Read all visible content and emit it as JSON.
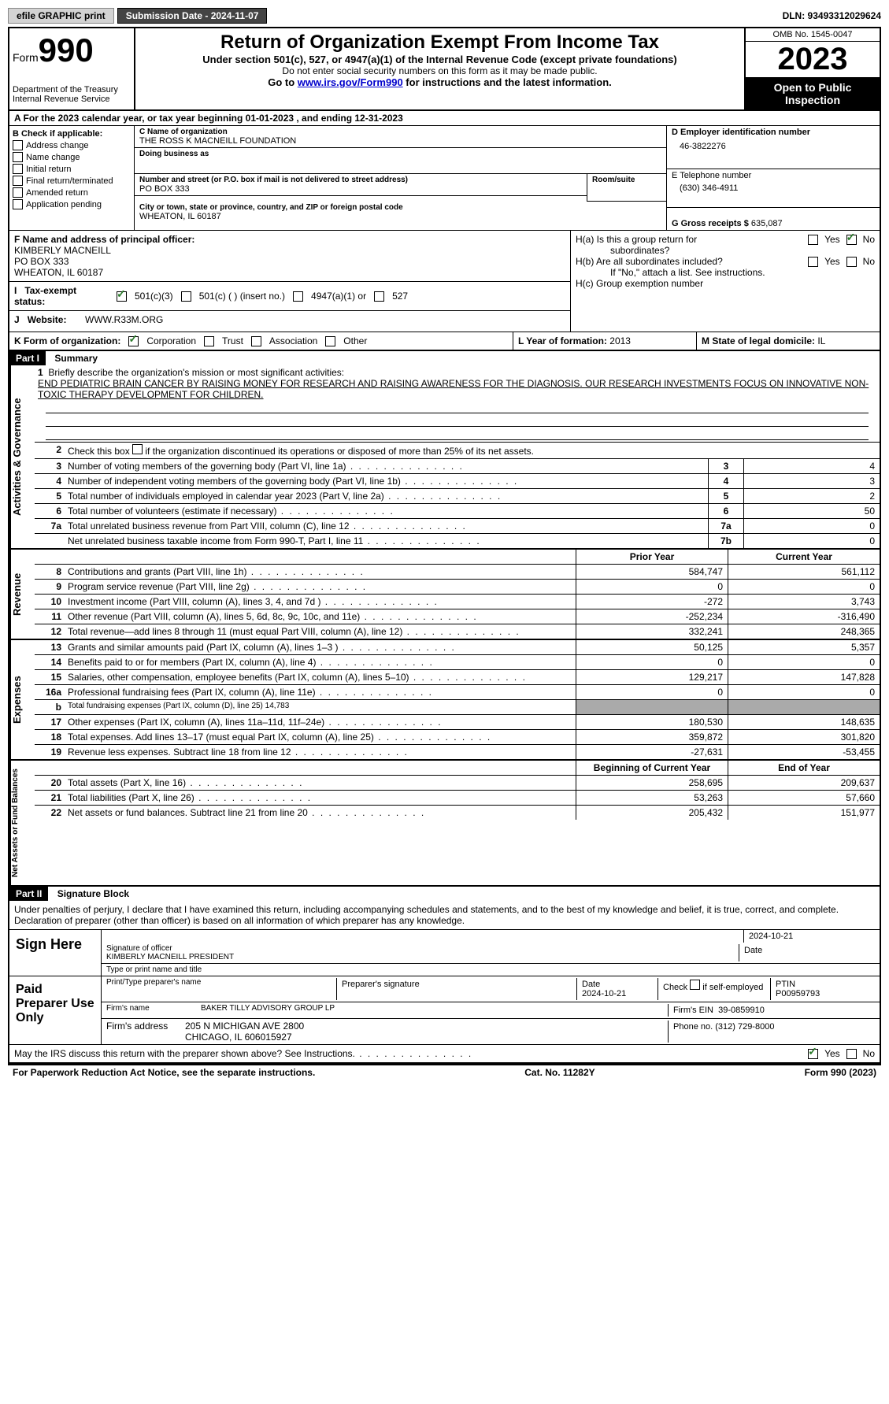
{
  "topbar": {
    "efile": "efile GRAPHIC print",
    "submission": "Submission Date - 2024-11-07",
    "dln": "DLN: 93493312029624"
  },
  "header": {
    "form_label": "Form",
    "form_number": "990",
    "dept": "Department of the Treasury",
    "irs": "Internal Revenue Service",
    "title": "Return of Organization Exempt From Income Tax",
    "subtitle": "Under section 501(c), 527, or 4947(a)(1) of the Internal Revenue Code (except private foundations)",
    "note1": "Do not enter social security numbers on this form as it may be made public.",
    "note2_pre": "Go to ",
    "note2_link": "www.irs.gov/Form990",
    "note2_post": " for instructions and the latest information.",
    "omb": "OMB No. 1545-0047",
    "year": "2023",
    "inspect1": "Open to Public",
    "inspect2": "Inspection"
  },
  "row_a": "A For the 2023 calendar year, or tax year beginning 01-01-2023   , and ending 12-31-2023",
  "section_b": {
    "label": "B Check if applicable:",
    "items": [
      "Address change",
      "Name change",
      "Initial return",
      "Final return/terminated",
      "Amended return",
      "Application pending"
    ]
  },
  "section_c": {
    "name_label": "C Name of organization",
    "name": "THE ROSS K MACNEILL FOUNDATION",
    "dba_label": "Doing business as",
    "addr_label": "Number and street (or P.O. box if mail is not delivered to street address)",
    "addr": "PO BOX 333",
    "room_label": "Room/suite",
    "city_label": "City or town, state or province, country, and ZIP or foreign postal code",
    "city": "WHEATON, IL  60187"
  },
  "section_d": {
    "ein_label": "D Employer identification number",
    "ein": "46-3822276",
    "phone_label": "E Telephone number",
    "phone": "(630) 346-4911",
    "gross_label": "G Gross receipts $",
    "gross": "635,087"
  },
  "section_f": {
    "label": "F Name and address of principal officer:",
    "name": "KIMBERLY MACNEILL",
    "addr1": "PO BOX 333",
    "addr2": "WHEATON, IL  60187"
  },
  "section_h": {
    "ha": "H(a)  Is this a group return for",
    "ha2": "subordinates?",
    "hb": "H(b)  Are all subordinates included?",
    "hb_note": "If \"No,\" attach a list. See instructions.",
    "hc": "H(c)  Group exemption number",
    "yes": "Yes",
    "no": "No"
  },
  "row_i": {
    "label": "Tax-exempt status:",
    "opt1": "501(c)(3)",
    "opt2": "501(c) (  ) (insert no.)",
    "opt3": "4947(a)(1) or",
    "opt4": "527"
  },
  "row_j": {
    "label": "Website:",
    "value": "WWW.R33M.ORG"
  },
  "row_k": {
    "label": "K Form of organization:",
    "opts": [
      "Corporation",
      "Trust",
      "Association",
      "Other"
    ]
  },
  "row_l": {
    "label": "L Year of formation:",
    "value": "2013"
  },
  "row_m": {
    "label": "M State of legal domicile:",
    "value": "IL"
  },
  "part1": {
    "header": "Part I",
    "title": "Summary",
    "side_labels": [
      "Activities & Governance",
      "Revenue",
      "Expenses",
      "Net Assets or Fund Balances"
    ],
    "line1_label": "Briefly describe the organization's mission or most significant activities:",
    "mission": "END PEDIATRIC BRAIN CANCER BY RAISING MONEY FOR RESEARCH AND RAISING AWARENESS FOR THE DIAGNOSIS. OUR RESEARCH INVESTMENTS FOCUS ON INNOVATIVE NON-TOXIC THERAPY DEVELOPMENT FOR CHILDREN.",
    "line2": "Check this box       if the organization discontinued its operations or disposed of more than 25% of its net assets.",
    "gov_lines": [
      {
        "n": "3",
        "text": "Number of voting members of the governing body (Part VI, line 1a)",
        "box": "3",
        "val": "4"
      },
      {
        "n": "4",
        "text": "Number of independent voting members of the governing body (Part VI, line 1b)",
        "box": "4",
        "val": "3"
      },
      {
        "n": "5",
        "text": "Total number of individuals employed in calendar year 2023 (Part V, line 2a)",
        "box": "5",
        "val": "2"
      },
      {
        "n": "6",
        "text": "Total number of volunteers (estimate if necessary)",
        "box": "6",
        "val": "50"
      },
      {
        "n": "7a",
        "text": "Total unrelated business revenue from Part VIII, column (C), line 12",
        "box": "7a",
        "val": "0"
      },
      {
        "n": "",
        "text": "Net unrelated business taxable income from Form 990-T, Part I, line 11",
        "box": "7b",
        "val": "0"
      }
    ],
    "col_headers": {
      "prior": "Prior Year",
      "current": "Current Year"
    },
    "rev_lines": [
      {
        "n": "8",
        "text": "Contributions and grants (Part VIII, line 1h)",
        "p": "584,747",
        "c": "561,112"
      },
      {
        "n": "9",
        "text": "Program service revenue (Part VIII, line 2g)",
        "p": "0",
        "c": "0"
      },
      {
        "n": "10",
        "text": "Investment income (Part VIII, column (A), lines 3, 4, and 7d )",
        "p": "-272",
        "c": "3,743"
      },
      {
        "n": "11",
        "text": "Other revenue (Part VIII, column (A), lines 5, 6d, 8c, 9c, 10c, and 11e)",
        "p": "-252,234",
        "c": "-316,490"
      },
      {
        "n": "12",
        "text": "Total revenue—add lines 8 through 11 (must equal Part VIII, column (A), line 12)",
        "p": "332,241",
        "c": "248,365"
      }
    ],
    "exp_lines": [
      {
        "n": "13",
        "text": "Grants and similar amounts paid (Part IX, column (A), lines 1–3 )",
        "p": "50,125",
        "c": "5,357"
      },
      {
        "n": "14",
        "text": "Benefits paid to or for members (Part IX, column (A), line 4)",
        "p": "0",
        "c": "0"
      },
      {
        "n": "15",
        "text": "Salaries, other compensation, employee benefits (Part IX, column (A), lines 5–10)",
        "p": "129,217",
        "c": "147,828"
      },
      {
        "n": "16a",
        "text": "Professional fundraising fees (Part IX, column (A), line 11e)",
        "p": "0",
        "c": "0"
      },
      {
        "n": "b",
        "text": "Total fundraising expenses (Part IX, column (D), line 25) 14,783",
        "p": "",
        "c": "",
        "gray": true
      },
      {
        "n": "17",
        "text": "Other expenses (Part IX, column (A), lines 11a–11d, 11f–24e)",
        "p": "180,530",
        "c": "148,635"
      },
      {
        "n": "18",
        "text": "Total expenses. Add lines 13–17 (must equal Part IX, column (A), line 25)",
        "p": "359,872",
        "c": "301,820"
      },
      {
        "n": "19",
        "text": "Revenue less expenses. Subtract line 18 from line 12",
        "p": "-27,631",
        "c": "-53,455"
      }
    ],
    "net_headers": {
      "begin": "Beginning of Current Year",
      "end": "End of Year"
    },
    "net_lines": [
      {
        "n": "20",
        "text": "Total assets (Part X, line 16)",
        "p": "258,695",
        "c": "209,637"
      },
      {
        "n": "21",
        "text": "Total liabilities (Part X, line 26)",
        "p": "53,263",
        "c": "57,660"
      },
      {
        "n": "22",
        "text": "Net assets or fund balances. Subtract line 21 from line 20",
        "p": "205,432",
        "c": "151,977"
      }
    ]
  },
  "part2": {
    "header": "Part II",
    "title": "Signature Block",
    "declaration": "Under penalties of perjury, I declare that I have examined this return, including accompanying schedules and statements, and to the best of my knowledge and belief, it is true, correct, and complete. Declaration of preparer (other than officer) is based on all information of which preparer has any knowledge."
  },
  "sign": {
    "left": "Sign Here",
    "date": "2024-10-21",
    "sig_label": "Signature of officer",
    "officer": "KIMBERLY MACNEILL  PRESIDENT",
    "type_label": "Type or print name and title",
    "date_label": "Date"
  },
  "preparer": {
    "left": "Paid Preparer Use Only",
    "name_label": "Print/Type preparer's name",
    "sig_label": "Preparer's signature",
    "date_label": "Date",
    "date": "2024-10-21",
    "check_label": "Check         if self-employed",
    "ptin_label": "PTIN",
    "ptin": "P00959793",
    "firm_label": "Firm's name",
    "firm": "BAKER TILLY ADVISORY GROUP LP",
    "ein_label": "Firm's EIN",
    "ein": "39-0859910",
    "addr_label": "Firm's address",
    "addr1": "205 N MICHIGAN AVE 2800",
    "addr2": "CHICAGO, IL  606015927",
    "phone_label": "Phone no.",
    "phone": "(312) 729-8000"
  },
  "discuss": "May the IRS discuss this return with the preparer shown above? See Instructions.",
  "footer": {
    "left": "For Paperwork Reduction Act Notice, see the separate instructions.",
    "center": "Cat. No. 11282Y",
    "right": "Form 990 (2023)"
  }
}
